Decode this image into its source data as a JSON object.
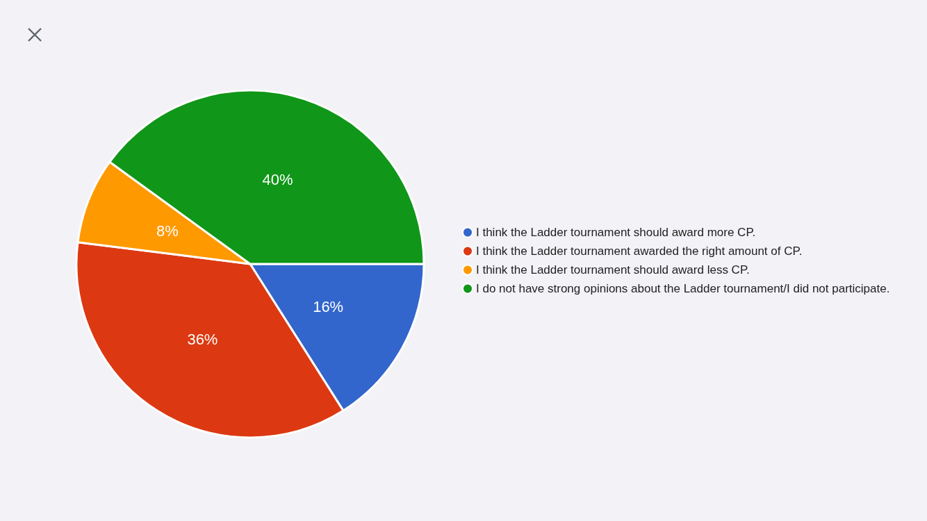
{
  "chart_data": {
    "type": "pie",
    "categories": [
      "I think the Ladder tournament should award more CP.",
      "I think the Ladder tournament awarded the right amount of CP.",
      "I think the Ladder tournament should award less CP.",
      "I do not have strong opinions about the Ladder tournament/I did not participate."
    ],
    "values": [
      16,
      36,
      8,
      40
    ],
    "colors": [
      "#3366cc",
      "#dc3912",
      "#ff9900",
      "#109618"
    ],
    "value_labels": [
      "16%",
      "36%",
      "8%",
      "40%"
    ],
    "legend": "right"
  }
}
